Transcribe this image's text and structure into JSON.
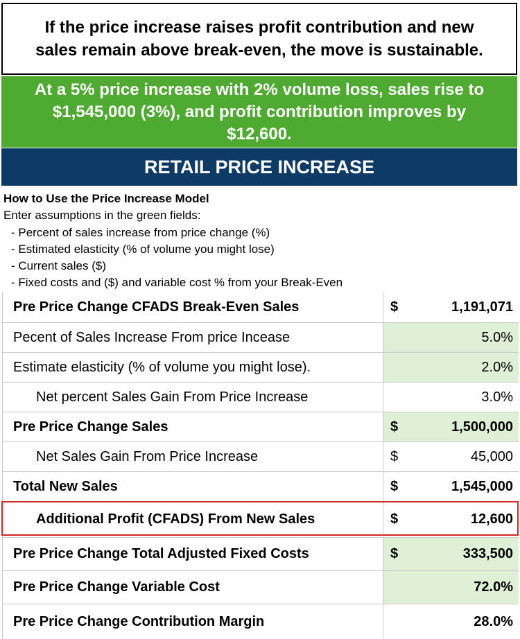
{
  "banner_top": {
    "line1": "If the price increase raises profit contribution and new",
    "line2": "sales remain above break-even, the move is sustainable."
  },
  "banner_green": {
    "line1": "At a 5% price increase with 2% volume loss, sales rise to",
    "line2": "$1,545,000 (3%), and profit contribution improves by",
    "line3": "$12,600."
  },
  "title": "RETAIL PRICE INCREASE",
  "instructions": {
    "heading": "How to Use the Price Increase Model",
    "intro": "Enter assumptions in the green fields:",
    "items": [
      "- Percent of sales increase from price change (%)",
      "- Estimated elasticity (% of volume you might lose)",
      "- Current sales ($)",
      "- Fixed costs and ($) and variable cost % from your Break-Even"
    ]
  },
  "rows": [
    {
      "label": "Pre Price Change CFADS Break-Even Sales",
      "currency": "$",
      "value": "1,191,071"
    },
    {
      "label": "Pecent of Sales Increase From price Incease",
      "currency": "",
      "value": "5.0%"
    },
    {
      "label": "Estimate elasticity (% of volume you might lose).",
      "currency": "",
      "value": "2.0%"
    },
    {
      "label": "Net percent Sales Gain From Price Increase",
      "currency": "",
      "value": "3.0%"
    },
    {
      "label": "Pre Price Change Sales",
      "currency": "$",
      "value": "1,500,000"
    },
    {
      "label": "Net Sales Gain From Price Increase",
      "currency": "$",
      "value": "45,000"
    },
    {
      "label": "Total New Sales",
      "currency": "$",
      "value": "1,545,000"
    },
    {
      "label": "Additional Profit (CFADS) From New Sales",
      "currency": "$",
      "value": "12,600"
    },
    {
      "label": "Pre Price Change Total Adjusted Fixed Costs",
      "currency": "$",
      "value": "333,500"
    },
    {
      "label": "Pre Price Change Variable Cost",
      "currency": "",
      "value": "72.0%"
    },
    {
      "label": "Pre Price Change Contribution Margin",
      "currency": "",
      "value": "28.0%"
    }
  ],
  "colors": {
    "banner_green": "#4faa32",
    "banner_blue": "#0e3a66",
    "input_cell_green": "#dff0d6",
    "highlight_red": "#d42424"
  }
}
